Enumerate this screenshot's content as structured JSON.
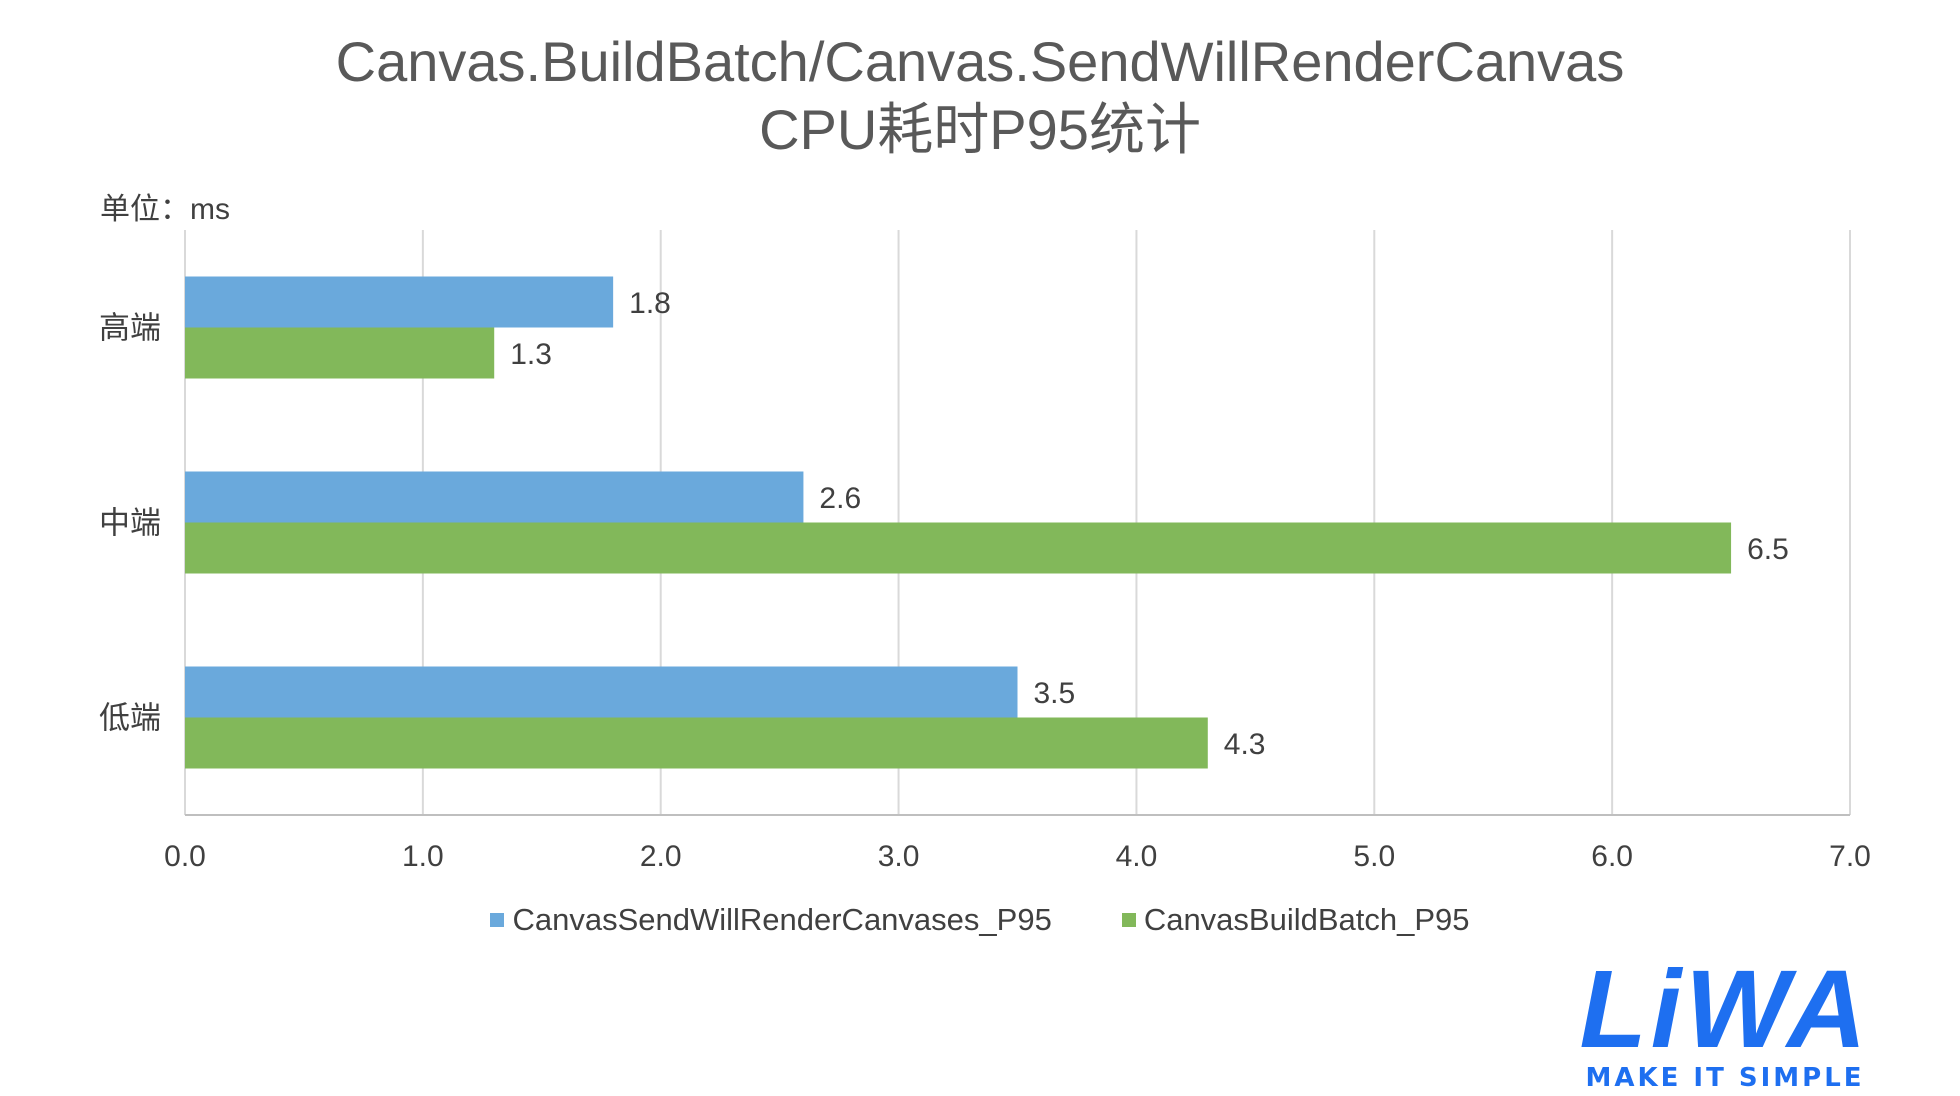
{
  "chart_data": {
    "type": "bar",
    "orientation": "horizontal",
    "title_line1": "Canvas.BuildBatch/Canvas.SendWillRenderCanvas",
    "title_line2": "CPU耗时P95统计",
    "unit_label": "单位：ms",
    "categories": [
      "高端",
      "中端",
      "低端"
    ],
    "series": [
      {
        "name": "CanvasSendWillRenderCanvases_P95",
        "color": "#6aa9dc",
        "values": [
          1.8,
          2.6,
          3.5
        ]
      },
      {
        "name": "CanvasBuildBatch_P95",
        "color": "#82b85a",
        "values": [
          1.3,
          6.5,
          4.3
        ]
      }
    ],
    "xlim": [
      0,
      7
    ],
    "xticks": [
      "0.0",
      "1.0",
      "2.0",
      "3.0",
      "4.0",
      "5.0",
      "6.0",
      "7.0"
    ],
    "grid": true,
    "legend_position": "bottom"
  },
  "logo": {
    "text": "LiWA",
    "tagline": "MAKE IT SIMPLE",
    "color": "#1e6ff0"
  }
}
